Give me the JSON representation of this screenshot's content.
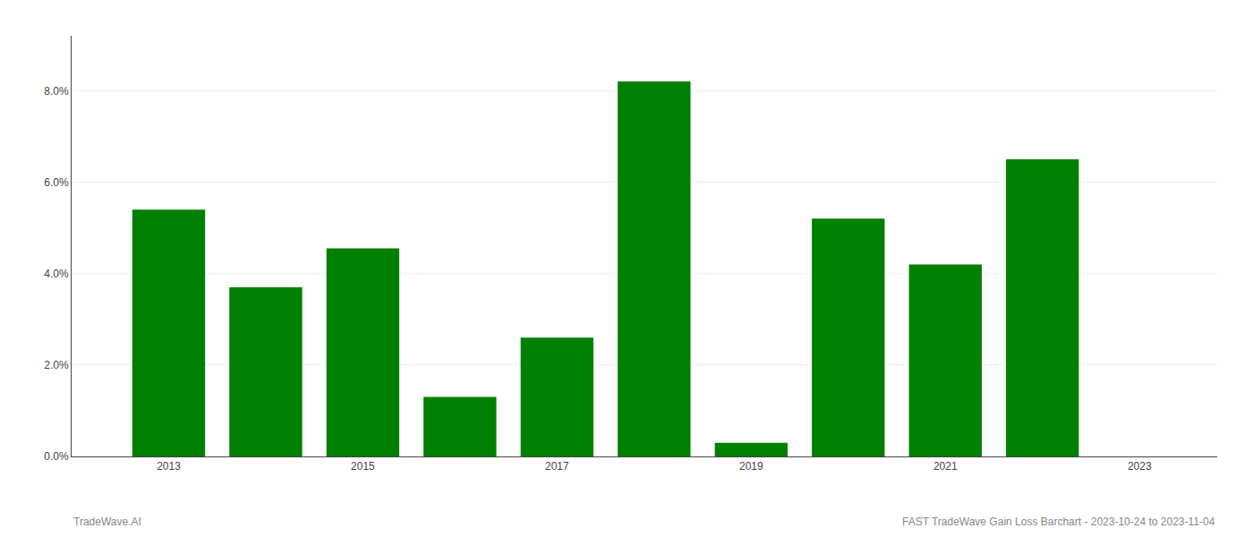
{
  "chart_data": {
    "type": "bar",
    "x": [
      2013,
      2014,
      2015,
      2016,
      2017,
      2018,
      2019,
      2020,
      2021,
      2022
    ],
    "values": [
      0.054,
      0.037,
      0.0455,
      0.013,
      0.026,
      0.082,
      0.003,
      0.052,
      0.042,
      0.065
    ],
    "color": "#008000",
    "xlim": [
      2012.0,
      2023.8
    ],
    "xticks": [
      2013,
      2015,
      2017,
      2019,
      2021,
      2023
    ],
    "ylim": [
      0,
      0.092
    ],
    "yticks": [
      {
        "value": 0.0,
        "label": "0.0%"
      },
      {
        "value": 0.02,
        "label": "2.0%"
      },
      {
        "value": 0.04,
        "label": "4.0%"
      },
      {
        "value": 0.06,
        "label": "6.0%"
      },
      {
        "value": 0.08,
        "label": "8.0%"
      }
    ],
    "grid": true,
    "annotations": [
      "TradeWave.AI",
      "FAST TradeWave Gain Loss Barchart - 2023-10-24 to 2023-11-04"
    ]
  }
}
